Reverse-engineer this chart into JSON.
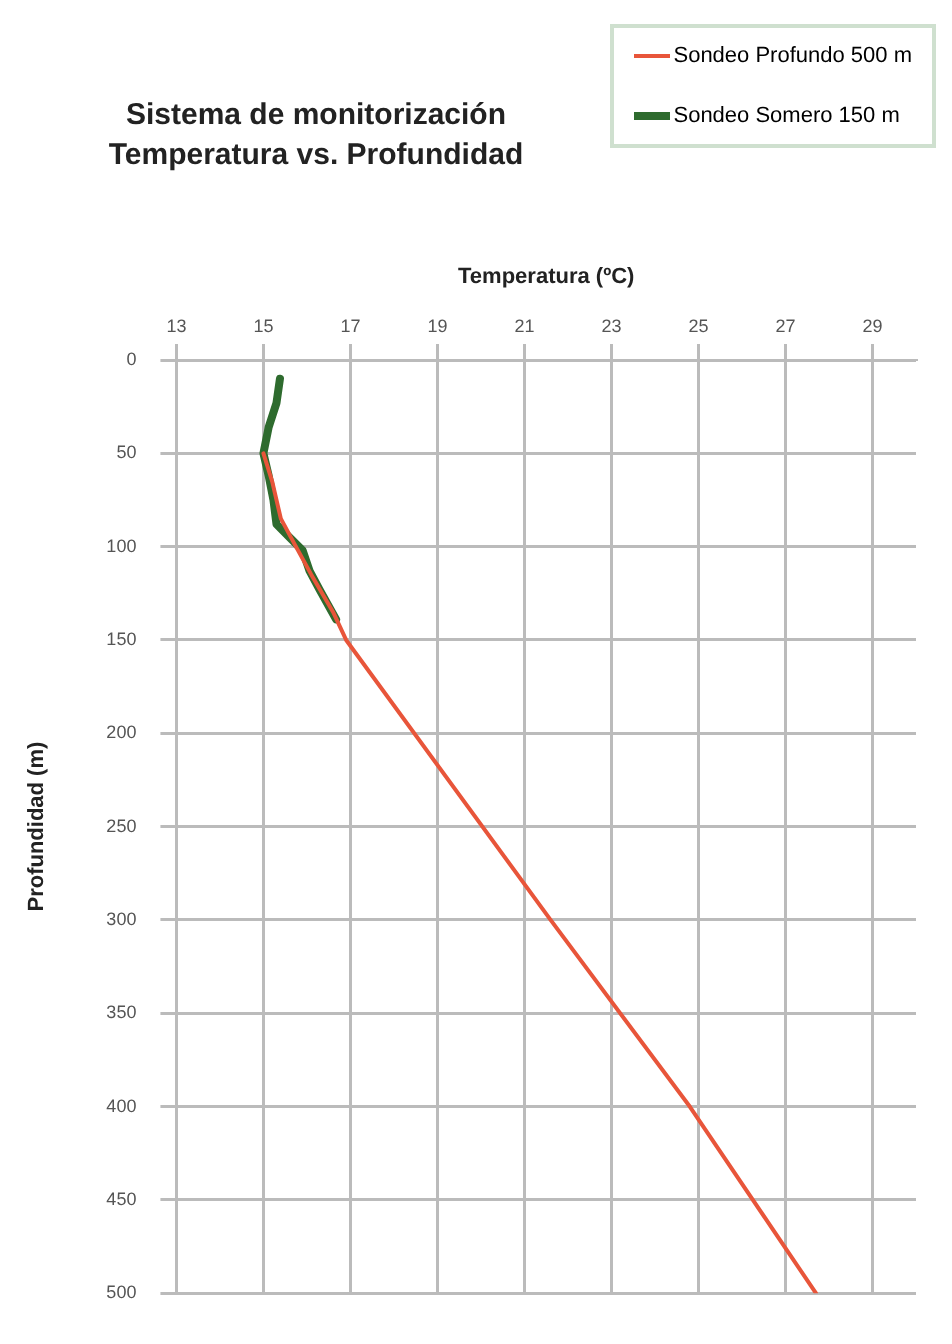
{
  "chart_data": {
    "type": "line",
    "title": "Sistema de monitorización\nTemperatura vs. Profundidad",
    "xlabel": "Temperatura (ºC)",
    "ylabel": "Profundidad (m)",
    "series": [
      {
        "name": "Sondeo Profundo 500 m",
        "color": "#e8553a",
        "x": [
          15.0,
          15.2,
          15.4,
          15.7,
          16.1,
          16.6,
          16.9,
          21.6,
          24.8,
          27.7
        ],
        "values": [
          50,
          65,
          85,
          98,
          115,
          135,
          150,
          300,
          400,
          500
        ]
      },
      {
        "name": "Sondeo Somero 150 m",
        "color": "#2e6b2e",
        "x": [
          15.38,
          15.3,
          15.12,
          15.0,
          15.12,
          15.23,
          15.3,
          15.64,
          15.9,
          16.06,
          16.29,
          16.67
        ],
        "values": [
          10,
          23,
          36,
          50,
          62,
          75,
          88,
          96,
          102,
          113,
          123,
          139
        ]
      }
    ],
    "xlim": [
      13,
      30
    ],
    "xticks": [
      13,
      15,
      17,
      19,
      21,
      23,
      25,
      27,
      29
    ],
    "ylim": [
      500,
      0
    ],
    "yticks": [
      0,
      50,
      100,
      150,
      200,
      250,
      300,
      350,
      400,
      450,
      500
    ],
    "grid": true,
    "legend": "top right",
    "marker": "none",
    "line_style": "solid"
  }
}
